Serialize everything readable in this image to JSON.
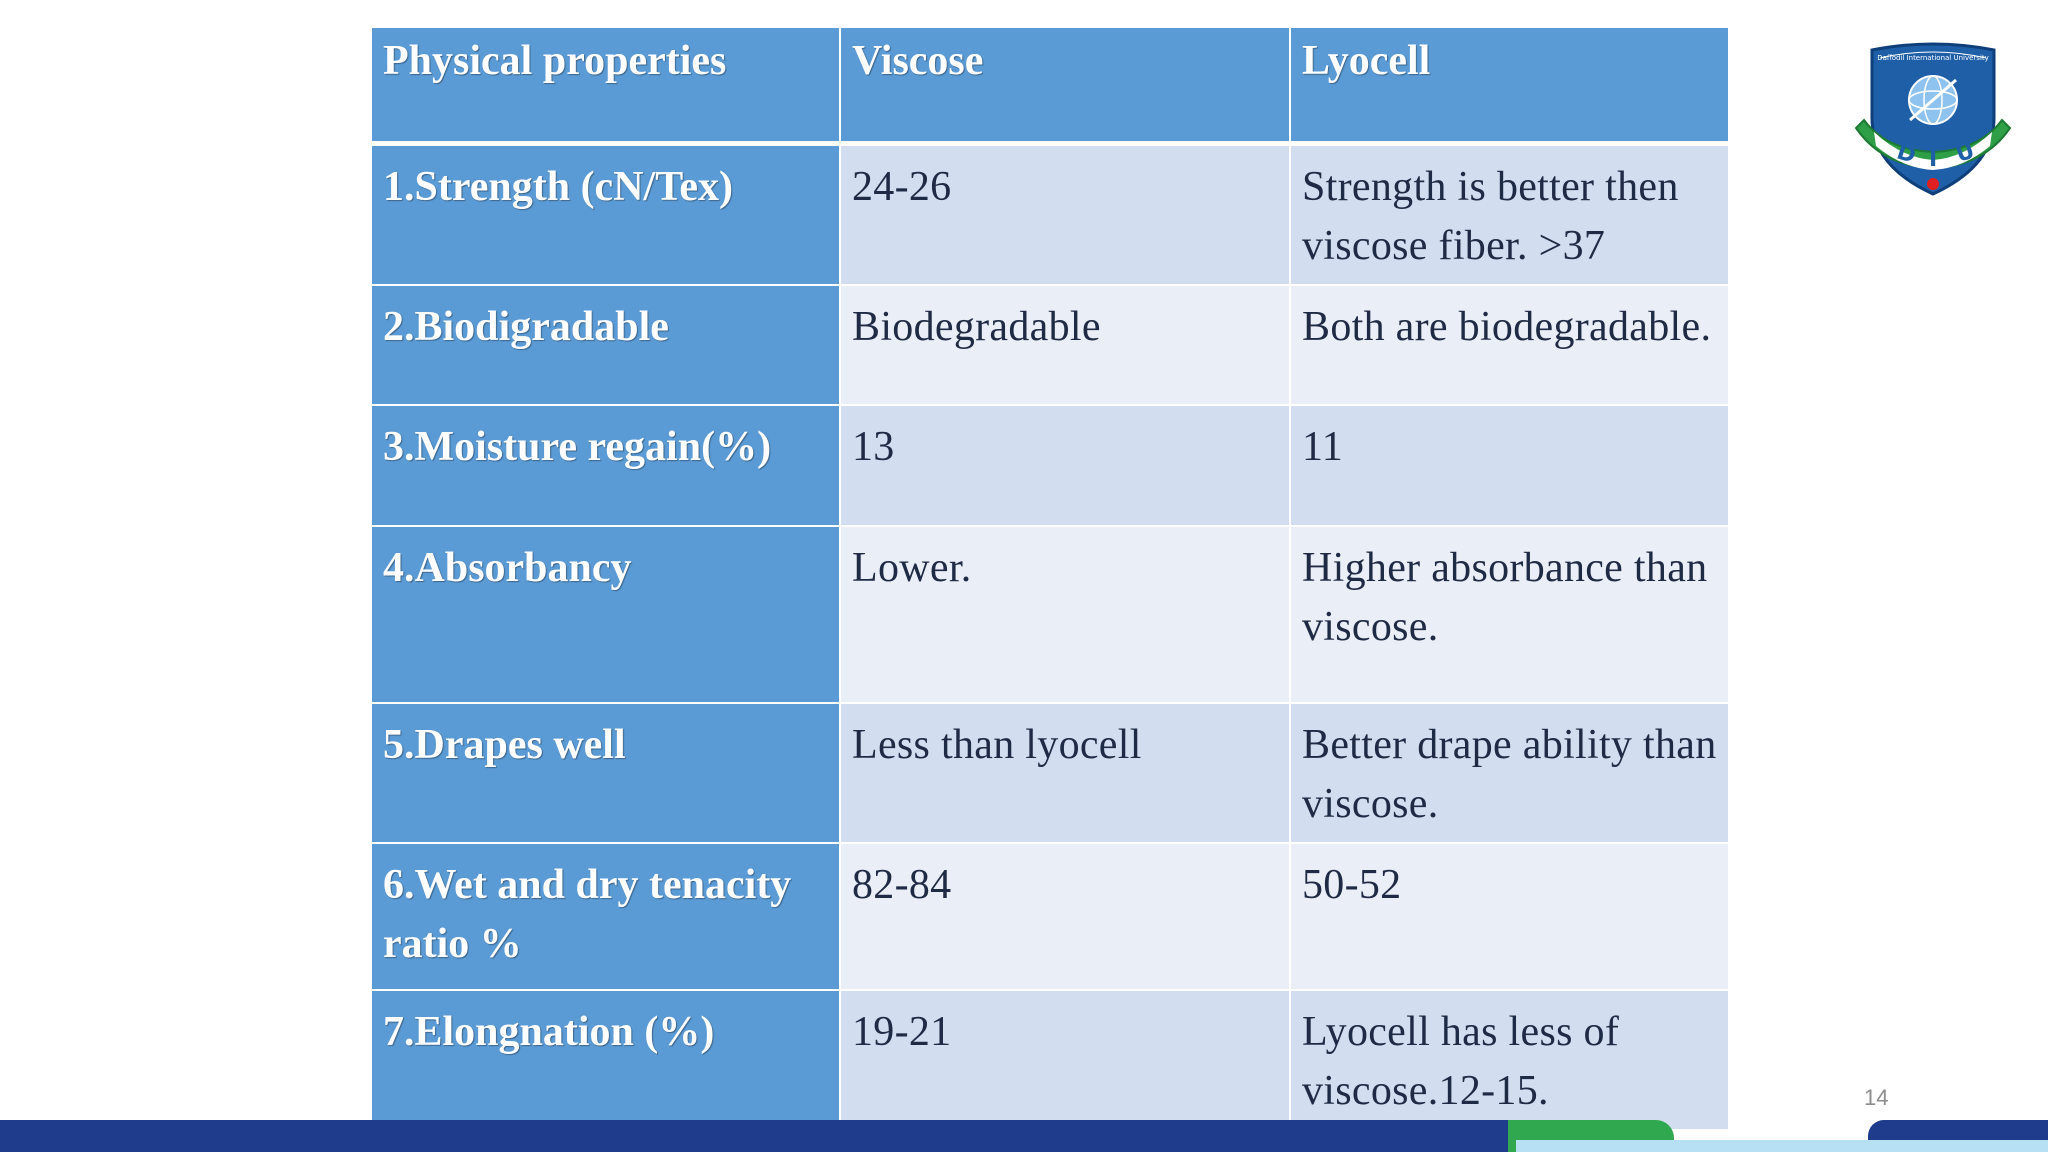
{
  "table": {
    "headers": [
      "Physical properties",
      "Viscose",
      "Lyocell"
    ],
    "rows": [
      {
        "property": "1.Strength (cN/Tex)",
        "viscose": "24-26",
        "lyocell": "Strength is better then viscose fiber. >37"
      },
      {
        "property": "2.Biodigradable",
        "viscose": "Biodegradable",
        "lyocell": "Both are biodegradable."
      },
      {
        "property": "3.Moisture regain(%)",
        "viscose": "13",
        "lyocell": "11"
      },
      {
        "property": "4.Absorbancy",
        "viscose": "Lower.",
        "lyocell": "Higher absorbance than viscose."
      },
      {
        "property": "5.Drapes well",
        "viscose": "Less than lyocell",
        "lyocell": "Better drape ability than viscose."
      },
      {
        "property": "6.Wet and dry tenacity ratio %",
        "viscose": "82-84",
        "lyocell": "50-52"
      },
      {
        "property": "7.Elongnation (%)",
        "viscose": "19-21",
        "lyocell": "Lyocell has less of viscose.12-15."
      }
    ]
  },
  "logo": {
    "name": "diu-logo",
    "arc_text": "Daffodil International University",
    "letters": [
      "D",
      "I",
      "U"
    ],
    "colors": {
      "shield": "#1f5fa8",
      "ribbon": "#2e9e47",
      "accent": "#e02020"
    }
  },
  "page_number": "14",
  "colors": {
    "header_fill": "#5b9bd5",
    "row_odd_fill": "#d2deef",
    "row_even_fill": "#eaeff7",
    "footer_navy": "#1f3b8c",
    "footer_green": "#2fa84f",
    "footer_light": "#b7e0f5"
  }
}
